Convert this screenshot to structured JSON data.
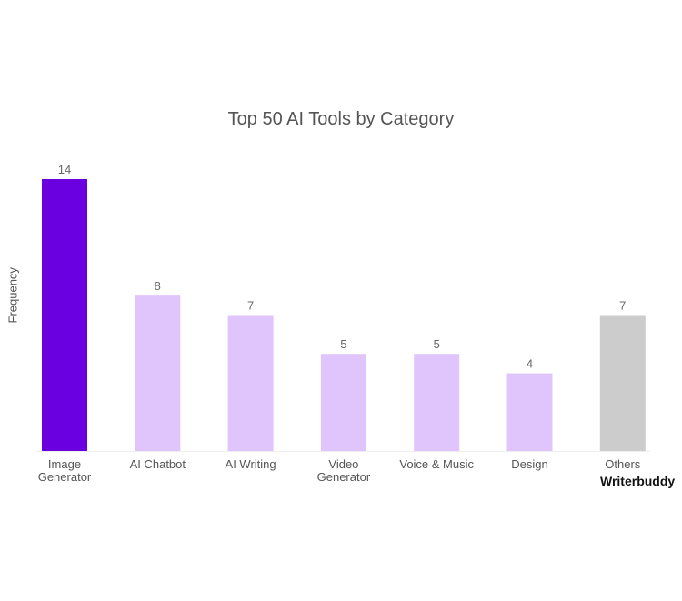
{
  "chart_data": {
    "type": "bar",
    "title": "Top 50 AI Tools by Category",
    "xlabel": "",
    "ylabel": "Frequency",
    "categories": [
      "Image Generator",
      "AI Chatbot",
      "AI Writing",
      "Video Generator",
      "Voice & Music",
      "Design",
      "Others"
    ],
    "category_lines": [
      [
        "Image",
        "Generator"
      ],
      [
        "AI Chatbot"
      ],
      [
        "AI Writing"
      ],
      [
        "Video",
        "Generator"
      ],
      [
        "Voice & Music"
      ],
      [
        "Design"
      ],
      [
        "Others"
      ]
    ],
    "values": [
      14,
      8,
      7,
      5,
      5,
      4,
      7
    ],
    "ylim": [
      0,
      14
    ],
    "grid": false,
    "colors": [
      "#6a00e0",
      "#e0c4fc",
      "#e0c4fc",
      "#e0c4fc",
      "#e0c4fc",
      "#e0c4fc",
      "#cccccc"
    ]
  },
  "brand": "Writerbuddy"
}
